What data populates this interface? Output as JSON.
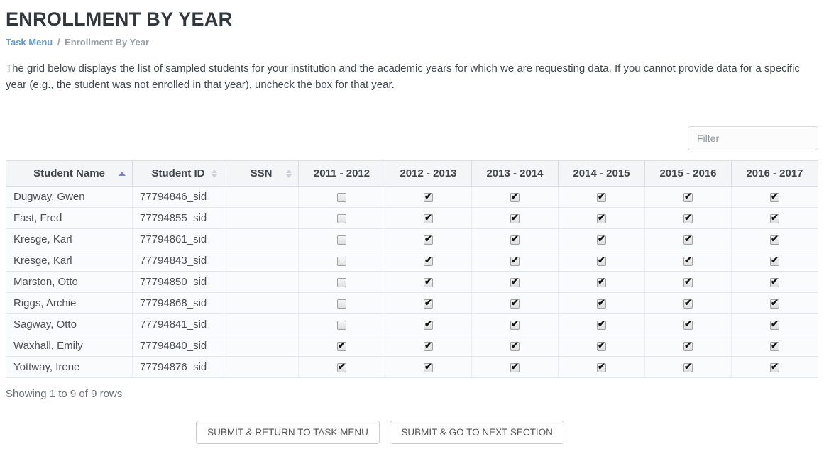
{
  "page": {
    "title": "ENROLLMENT BY YEAR",
    "breadcrumb": {
      "link_label": "Task Menu",
      "separator": "/",
      "current_label": "Enrollment By Year"
    },
    "instructions": "The grid below displays the list of sampled students for your institution and the academic years for which we are requesting data. If you cannot provide data for a specific year (e.g., the student was not enrolled in that year), uncheck the box for that year."
  },
  "filter": {
    "placeholder": "Filter",
    "value": ""
  },
  "table": {
    "columns": [
      {
        "label": "Student Name",
        "sort": "asc"
      },
      {
        "label": "Student ID",
        "sort": "both"
      },
      {
        "label": "SSN",
        "sort": "both"
      },
      {
        "label": "2011 - 2012",
        "sort": "none"
      },
      {
        "label": "2012 - 2013",
        "sort": "none"
      },
      {
        "label": "2013 - 2014",
        "sort": "none"
      },
      {
        "label": "2014 - 2015",
        "sort": "none"
      },
      {
        "label": "2015 - 2016",
        "sort": "none"
      },
      {
        "label": "2016 - 2017",
        "sort": "none"
      }
    ],
    "rows": [
      {
        "student_name": "Dugway, Gwen",
        "student_id": "77794846_sid",
        "ssn": "",
        "years_checked": [
          false,
          true,
          true,
          true,
          true,
          true
        ]
      },
      {
        "student_name": "Fast, Fred",
        "student_id": "77794855_sid",
        "ssn": "",
        "years_checked": [
          false,
          true,
          true,
          true,
          true,
          true
        ]
      },
      {
        "student_name": "Kresge, Karl",
        "student_id": "77794861_sid",
        "ssn": "",
        "years_checked": [
          false,
          true,
          true,
          true,
          true,
          true
        ]
      },
      {
        "student_name": "Kresge, Karl",
        "student_id": "77794843_sid",
        "ssn": "",
        "years_checked": [
          false,
          true,
          true,
          true,
          true,
          true
        ]
      },
      {
        "student_name": "Marston, Otto",
        "student_id": "77794850_sid",
        "ssn": "",
        "years_checked": [
          false,
          true,
          true,
          true,
          true,
          true
        ]
      },
      {
        "student_name": "Riggs, Archie",
        "student_id": "77794868_sid",
        "ssn": "",
        "years_checked": [
          false,
          true,
          true,
          true,
          true,
          true
        ]
      },
      {
        "student_name": "Sagway, Otto",
        "student_id": "77794841_sid",
        "ssn": "",
        "years_checked": [
          false,
          true,
          true,
          true,
          true,
          true
        ]
      },
      {
        "student_name": "Waxhall, Emily",
        "student_id": "77794840_sid",
        "ssn": "",
        "years_checked": [
          true,
          true,
          true,
          true,
          true,
          true
        ]
      },
      {
        "student_name": "Yottway, Irene",
        "student_id": "77794876_sid",
        "ssn": "",
        "years_checked": [
          true,
          true,
          true,
          true,
          true,
          true
        ]
      }
    ]
  },
  "footer": {
    "summary": "Showing 1 to 9 of 9 rows",
    "submit_return_label": "SUBMIT & RETURN TO TASK MENU",
    "submit_next_label": "SUBMIT & GO TO NEXT SECTION"
  },
  "colors": {
    "sort_active_arrow": "#7d81cc",
    "breadcrumb_link": "#5f9bd5",
    "title_text": "#31373d",
    "header_bg": "#f4f5f7",
    "row_bg": "#fafbfc"
  }
}
